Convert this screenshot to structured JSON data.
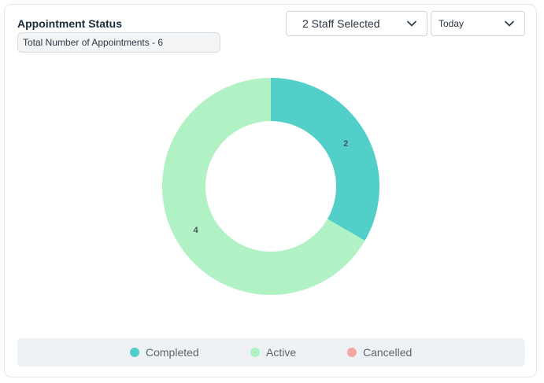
{
  "widget": {
    "title": "Appointment Status",
    "total_label": "Total Number of Appointments - 6"
  },
  "filters": {
    "staff_selected": "2 Staff Selected",
    "period": "Today"
  },
  "chart_data": {
    "type": "pie",
    "variant": "donut",
    "total": 6,
    "series": [
      {
        "name": "Completed",
        "value": 2,
        "color": "#52cfc9"
      },
      {
        "name": "Active",
        "value": 4,
        "color": "#b1f2c5"
      },
      {
        "name": "Cancelled",
        "value": 0,
        "color": "#f6a6a0"
      }
    ],
    "legend_position": "bottom"
  },
  "icons": {
    "staff_dropdown": "chevron-down-icon",
    "period_dropdown": "chevron-down-icon"
  }
}
